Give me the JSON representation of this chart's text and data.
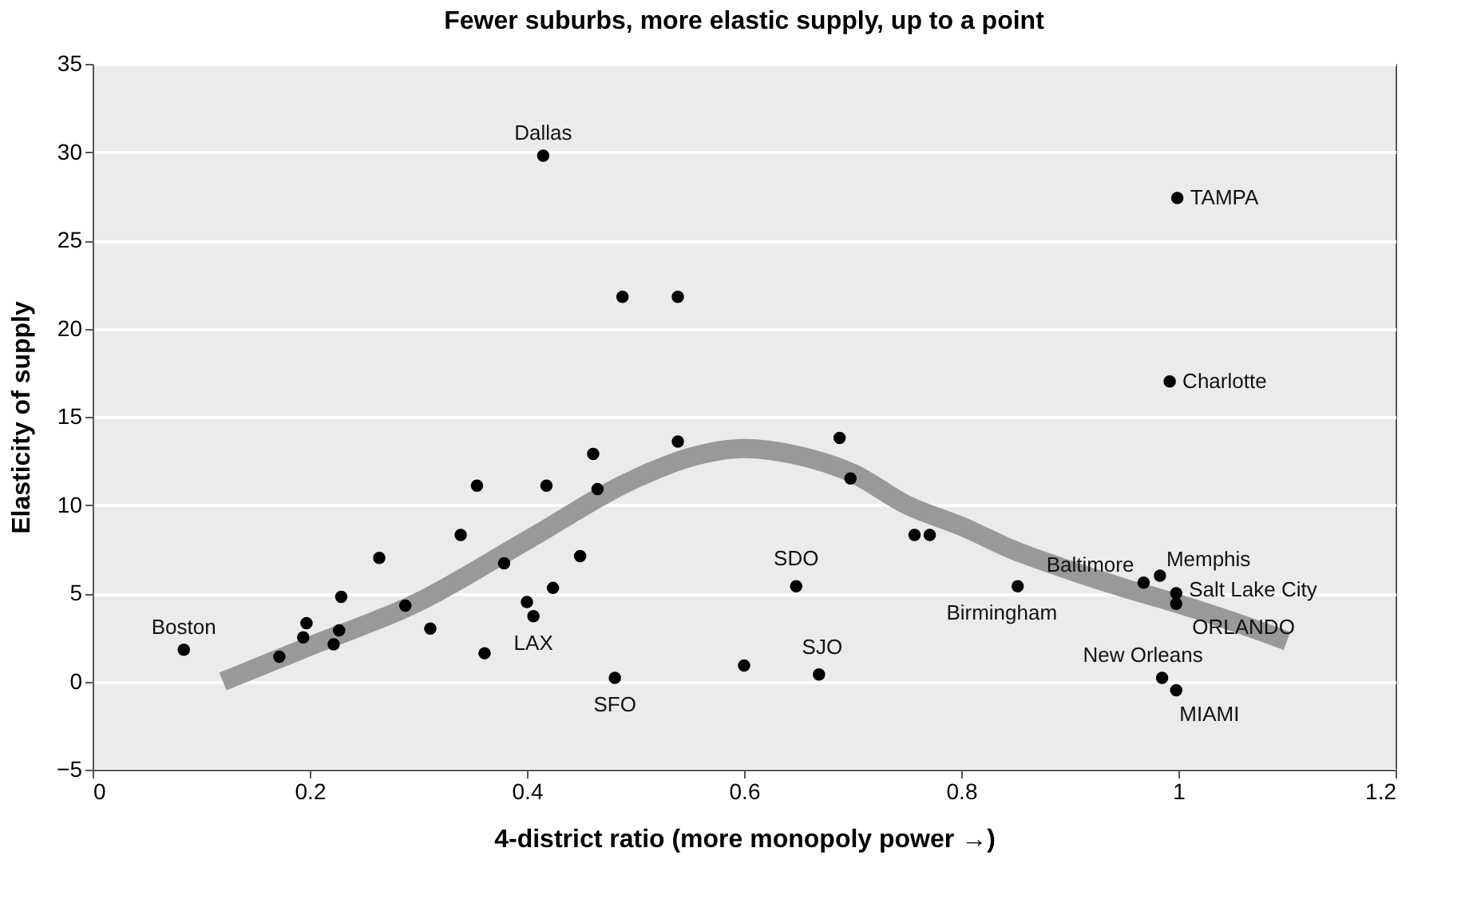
{
  "chart_data": {
    "type": "scatter",
    "title": "Fewer suburbs, more elastic supply, up to a point",
    "xlabel": "4-district ratio (more monopoly power →)",
    "ylabel": "Elasticity of supply",
    "xlim": [
      0,
      1.2
    ],
    "xticks": [
      0,
      0.2,
      0.4,
      0.6,
      0.8,
      1,
      1.2
    ],
    "ylim": [
      -5,
      35
    ],
    "yticks": [
      {
        "value": -5,
        "label": "−5"
      },
      0,
      5,
      10,
      15,
      20,
      25,
      30,
      35
    ],
    "grid": "y",
    "series": [
      {
        "type": "line",
        "color": "#999999",
        "x": [
          0.12,
          0.2,
          0.3,
          0.4,
          0.5,
          0.55,
          0.6,
          0.65,
          0.7,
          0.75,
          0.8,
          0.85,
          0.9,
          0.95,
          1.0,
          1.05,
          1.1
        ],
        "values": [
          0,
          2,
          4.5,
          8,
          11.5,
          12.7,
          13.2,
          12.8,
          11.8,
          10,
          8.8,
          7.4,
          6.3,
          5.3,
          4.4,
          3.4,
          2.3
        ]
      },
      {
        "type": "scatter",
        "color": "#000000",
        "marker": "circle",
        "x": [
          0.084,
          0.172,
          0.194,
          0.197,
          0.222,
          0.227,
          0.229,
          0.264,
          0.288,
          0.311,
          0.339,
          0.354,
          0.361,
          0.379,
          0.4,
          0.406,
          0.418,
          0.424,
          0.415,
          0.488,
          0.539,
          0.539,
          0.461,
          0.465,
          0.449,
          0.481,
          0.6,
          0.648,
          0.669,
          0.688,
          0.698,
          0.757,
          0.771,
          0.999,
          0.992,
          0.852,
          0.968,
          0.983,
          0.998,
          0.998,
          0.985,
          0.998
        ],
        "values": [
          1.8,
          1.4,
          2.5,
          3.3,
          2.1,
          2.9,
          4.8,
          7.0,
          4.3,
          3.0,
          8.3,
          11.1,
          1.6,
          6.7,
          4.5,
          3.7,
          11.1,
          5.3,
          29.8,
          21.8,
          21.8,
          13.6,
          12.9,
          10.9,
          7.1,
          0.2,
          0.9,
          5.4,
          0.4,
          13.8,
          11.5,
          8.3,
          8.3,
          27.4,
          17.0,
          5.4,
          5.6,
          6.0,
          5.0,
          4.4,
          0.2,
          -0.5
        ]
      }
    ],
    "annotations": [
      {
        "text": "Dallas",
        "x": 0.415,
        "y": 29.8
      },
      {
        "text": "TAMPA",
        "x": 0.999,
        "y": 27.4
      },
      {
        "text": "Charlotte",
        "x": 0.992,
        "y": 17.0
      },
      {
        "text": "Boston",
        "x": 0.084,
        "y": 1.8
      },
      {
        "text": "LAX",
        "x": 0.406,
        "y": 3.7
      },
      {
        "text": "SFO",
        "x": 0.481,
        "y": 0.2
      },
      {
        "text": "SDO",
        "x": 0.648,
        "y": 5.4
      },
      {
        "text": "SJO",
        "x": 0.669,
        "y": 0.4
      },
      {
        "text": "Birmingham",
        "x": 0.852,
        "y": 5.4
      },
      {
        "text": "Baltimore",
        "x": 0.968,
        "y": 5.6
      },
      {
        "text": "Memphis",
        "x": 0.983,
        "y": 6.0
      },
      {
        "text": "Salt Lake City",
        "x": 0.998,
        "y": 5.0
      },
      {
        "text": "ORLANDO",
        "x": 0.998,
        "y": 4.4
      },
      {
        "text": "New Orleans",
        "x": 0.985,
        "y": 0.2
      },
      {
        "text": "MIAMI",
        "x": 0.998,
        "y": -0.5
      }
    ]
  }
}
